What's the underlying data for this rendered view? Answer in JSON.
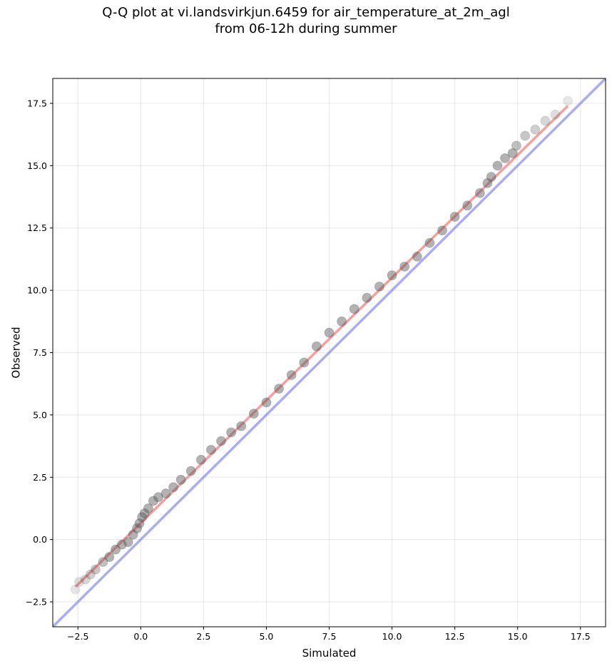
{
  "chart_data": {
    "type": "scatter",
    "title": [
      "Q-Q plot at vi.landsvirkjun.6459 for air_temperature_at_2m_agl",
      "from 06-12h during summer"
    ],
    "xlabel": "Simulated",
    "ylabel": "Observed",
    "xlim": [
      -3.5,
      18.5
    ],
    "ylim": [
      -3.5,
      18.5
    ],
    "xticks": [
      -2.5,
      0.0,
      2.5,
      5.0,
      7.5,
      10.0,
      12.5,
      15.0,
      17.5
    ],
    "yticks": [
      -2.5,
      0.0,
      2.5,
      5.0,
      7.5,
      10.0,
      12.5,
      15.0,
      17.5
    ],
    "xtick_labels": [
      "−2.5",
      "0.0",
      "2.5",
      "5.0",
      "7.5",
      "10.0",
      "12.5",
      "15.0",
      "17.5"
    ],
    "ytick_labels": [
      "−2.5",
      "0.0",
      "2.5",
      "5.0",
      "7.5",
      "10.0",
      "12.5",
      "15.0",
      "17.5"
    ],
    "grid": true,
    "colors": {
      "points": "#555555",
      "fit_line": "#f08080",
      "identity_line": "#8080f0"
    },
    "quantiles": {
      "x": [
        -2.6,
        -2.45,
        -2.2,
        -2.0,
        -1.8,
        -1.5,
        -1.25,
        -1.0,
        -0.75,
        -0.5,
        -0.3,
        -0.15,
        -0.05,
        0.05,
        0.15,
        0.3,
        0.5,
        0.7,
        1.0,
        1.3,
        1.6,
        2.0,
        2.4,
        2.8,
        3.2,
        3.6,
        4.0,
        4.5,
        5.0,
        5.5,
        6.0,
        6.5,
        7.0,
        7.5,
        8.0,
        8.5,
        9.0,
        9.5,
        10.0,
        10.5,
        11.0,
        11.5,
        12.0,
        12.5,
        13.0,
        13.5,
        13.8,
        13.95,
        14.2,
        14.5,
        14.8,
        14.95,
        15.3,
        15.7,
        16.1,
        16.5,
        17.0
      ],
      "y": [
        -2.0,
        -1.7,
        -1.6,
        -1.4,
        -1.2,
        -0.9,
        -0.7,
        -0.4,
        -0.2,
        -0.1,
        0.2,
        0.45,
        0.65,
        0.9,
        1.05,
        1.25,
        1.55,
        1.7,
        1.85,
        2.1,
        2.4,
        2.75,
        3.2,
        3.6,
        3.95,
        4.3,
        4.55,
        5.05,
        5.5,
        6.05,
        6.6,
        7.1,
        7.75,
        8.3,
        8.75,
        9.25,
        9.7,
        10.15,
        10.6,
        10.95,
        11.35,
        11.9,
        12.4,
        12.95,
        13.4,
        13.9,
        14.3,
        14.55,
        15.0,
        15.3,
        15.5,
        15.8,
        16.2,
        16.45,
        16.8,
        17.05,
        17.6
      ]
    },
    "fit_line": {
      "x": [
        -2.6,
        17.0
      ],
      "y": [
        -1.9,
        17.4
      ]
    },
    "identity_line": {
      "x": [
        -3.5,
        18.5
      ],
      "y": [
        -3.5,
        18.5
      ]
    }
  }
}
